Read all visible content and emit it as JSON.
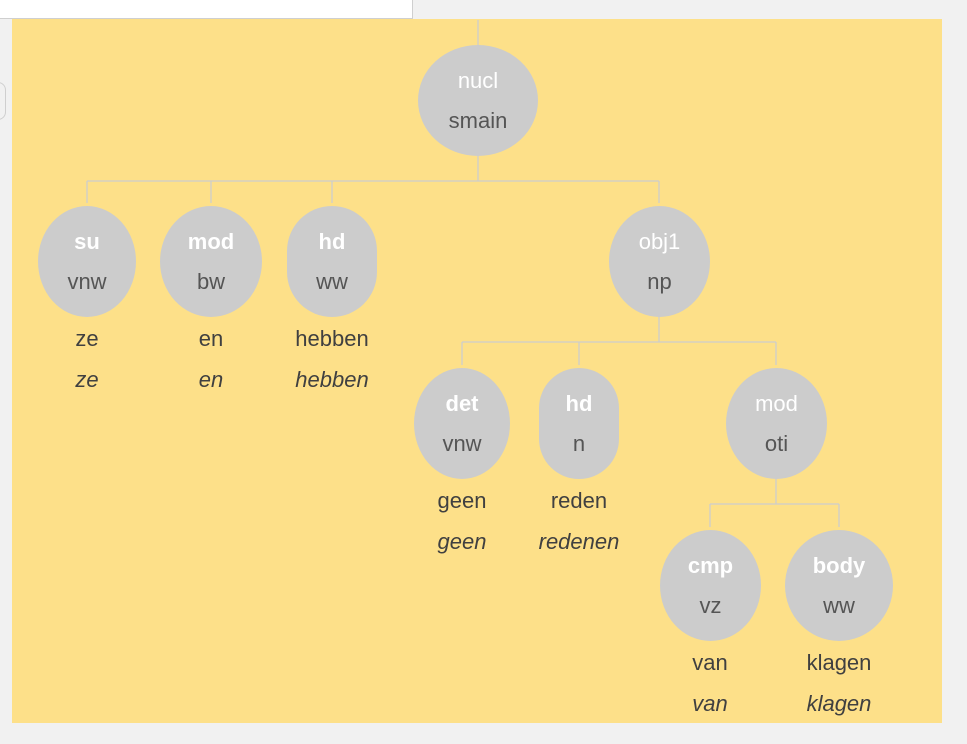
{
  "colors": {
    "panel_background": "#fde089",
    "node_fill": "#cccccc",
    "relation_text": "#ffffff",
    "category_text": "#555555",
    "word_text": "#404040",
    "edge": "#cdcdcd",
    "page_background": "#f1f1f1"
  },
  "tree": {
    "root": {
      "rel": "nucl",
      "cat": "smain"
    },
    "su": {
      "rel": "su",
      "cat": "vnw",
      "word": "ze",
      "lemma": "ze"
    },
    "mod": {
      "rel": "mod",
      "cat": "bw",
      "word": "en",
      "lemma": "en"
    },
    "hd": {
      "rel": "hd",
      "cat": "ww",
      "word": "hebben",
      "lemma": "hebben"
    },
    "obj1": {
      "rel": "obj1",
      "cat": "np"
    },
    "obj1_det": {
      "rel": "det",
      "cat": "vnw",
      "word": "geen",
      "lemma": "geen"
    },
    "obj1_hd": {
      "rel": "hd",
      "cat": "n",
      "word": "reden",
      "lemma": "redenen"
    },
    "obj1_mod": {
      "rel": "mod",
      "cat": "oti"
    },
    "oti_cmp": {
      "rel": "cmp",
      "cat": "vz",
      "word": "van",
      "lemma": "van"
    },
    "oti_body": {
      "rel": "body",
      "cat": "ww",
      "word": "klagen",
      "lemma": "klagen"
    }
  }
}
